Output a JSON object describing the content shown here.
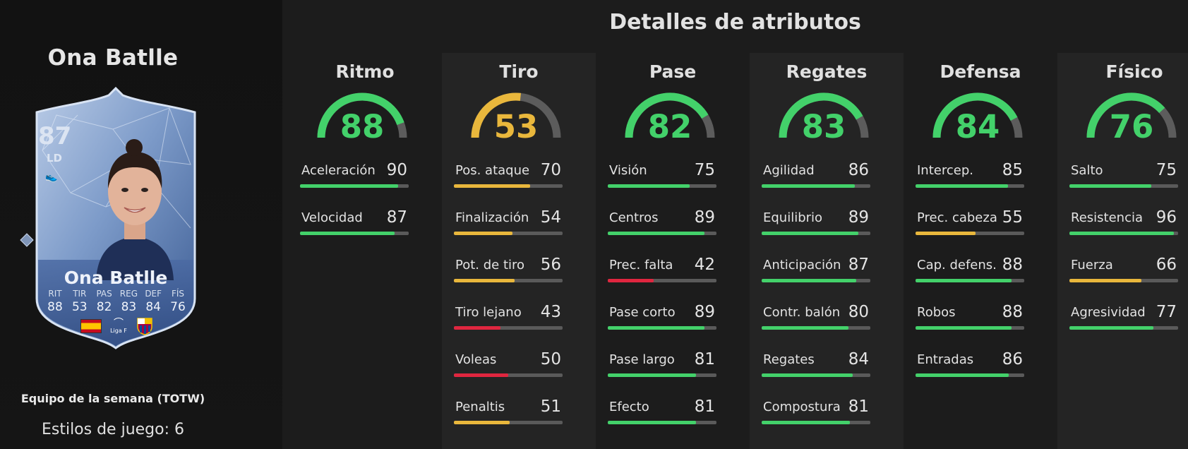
{
  "colors": {
    "green": "#43d16a",
    "yellow": "#e9b73c",
    "red": "#e0263f",
    "track": "#5a5a5a"
  },
  "player": {
    "name": "Ona Batlle",
    "card_rating": "87",
    "card_position": "LD",
    "card_name": "Ona Batlle",
    "card_stats": [
      {
        "label": "RIT",
        "value": "88"
      },
      {
        "label": "TIR",
        "value": "53"
      },
      {
        "label": "PAS",
        "value": "82"
      },
      {
        "label": "REG",
        "value": "83"
      },
      {
        "label": "DEF",
        "value": "84"
      },
      {
        "label": "FÍS",
        "value": "76"
      }
    ],
    "league_text": "Liga F",
    "card_type": "Equipo de la semana (TOTW)",
    "playstyles": "Estilos de juego: 6"
  },
  "attributes": {
    "title": "Detalles de atributos",
    "categories": [
      {
        "name": "Ritmo",
        "value": 88,
        "color": "#43d16a",
        "subs": [
          {
            "name": "Aceleración",
            "value": 90,
            "color": "#43d16a"
          },
          {
            "name": "Velocidad",
            "value": 87,
            "color": "#43d16a"
          }
        ]
      },
      {
        "name": "Tiro",
        "value": 53,
        "color": "#e9b73c",
        "subs": [
          {
            "name": "Pos. ataque",
            "value": 70,
            "color": "#e9b73c"
          },
          {
            "name": "Finalización",
            "value": 54,
            "color": "#e9b73c"
          },
          {
            "name": "Pot. de tiro",
            "value": 56,
            "color": "#e9b73c"
          },
          {
            "name": "Tiro lejano",
            "value": 43,
            "color": "#e0263f"
          },
          {
            "name": "Voleas",
            "value": 50,
            "color": "#e0263f"
          },
          {
            "name": "Penaltis",
            "value": 51,
            "color": "#e9b73c"
          }
        ]
      },
      {
        "name": "Pase",
        "value": 82,
        "color": "#43d16a",
        "subs": [
          {
            "name": "Visión",
            "value": 75,
            "color": "#43d16a"
          },
          {
            "name": "Centros",
            "value": 89,
            "color": "#43d16a"
          },
          {
            "name": "Prec. falta",
            "value": 42,
            "color": "#e0263f"
          },
          {
            "name": "Pase corto",
            "value": 89,
            "color": "#43d16a"
          },
          {
            "name": "Pase largo",
            "value": 81,
            "color": "#43d16a"
          },
          {
            "name": "Efecto",
            "value": 81,
            "color": "#43d16a"
          }
        ]
      },
      {
        "name": "Regates",
        "value": 83,
        "color": "#43d16a",
        "subs": [
          {
            "name": "Agilidad",
            "value": 86,
            "color": "#43d16a"
          },
          {
            "name": "Equilibrio",
            "value": 89,
            "color": "#43d16a"
          },
          {
            "name": "Anticipación",
            "value": 87,
            "color": "#43d16a"
          },
          {
            "name": "Contr. balón",
            "value": 80,
            "color": "#43d16a"
          },
          {
            "name": "Regates",
            "value": 84,
            "color": "#43d16a"
          },
          {
            "name": "Compostura",
            "value": 81,
            "color": "#43d16a"
          }
        ]
      },
      {
        "name": "Defensa",
        "value": 84,
        "color": "#43d16a",
        "subs": [
          {
            "name": "Intercep.",
            "value": 85,
            "color": "#43d16a"
          },
          {
            "name": "Prec. cabeza",
            "value": 55,
            "color": "#e9b73c"
          },
          {
            "name": "Cap. defens.",
            "value": 88,
            "color": "#43d16a"
          },
          {
            "name": "Robos",
            "value": 88,
            "color": "#43d16a"
          },
          {
            "name": "Entradas",
            "value": 86,
            "color": "#43d16a"
          }
        ]
      },
      {
        "name": "Físico",
        "value": 76,
        "color": "#43d16a",
        "subs": [
          {
            "name": "Salto",
            "value": 75,
            "color": "#43d16a"
          },
          {
            "name": "Resistencia",
            "value": 96,
            "color": "#43d16a"
          },
          {
            "name": "Fuerza",
            "value": 66,
            "color": "#e9b73c"
          },
          {
            "name": "Agresividad",
            "value": 77,
            "color": "#43d16a"
          }
        ]
      }
    ]
  }
}
